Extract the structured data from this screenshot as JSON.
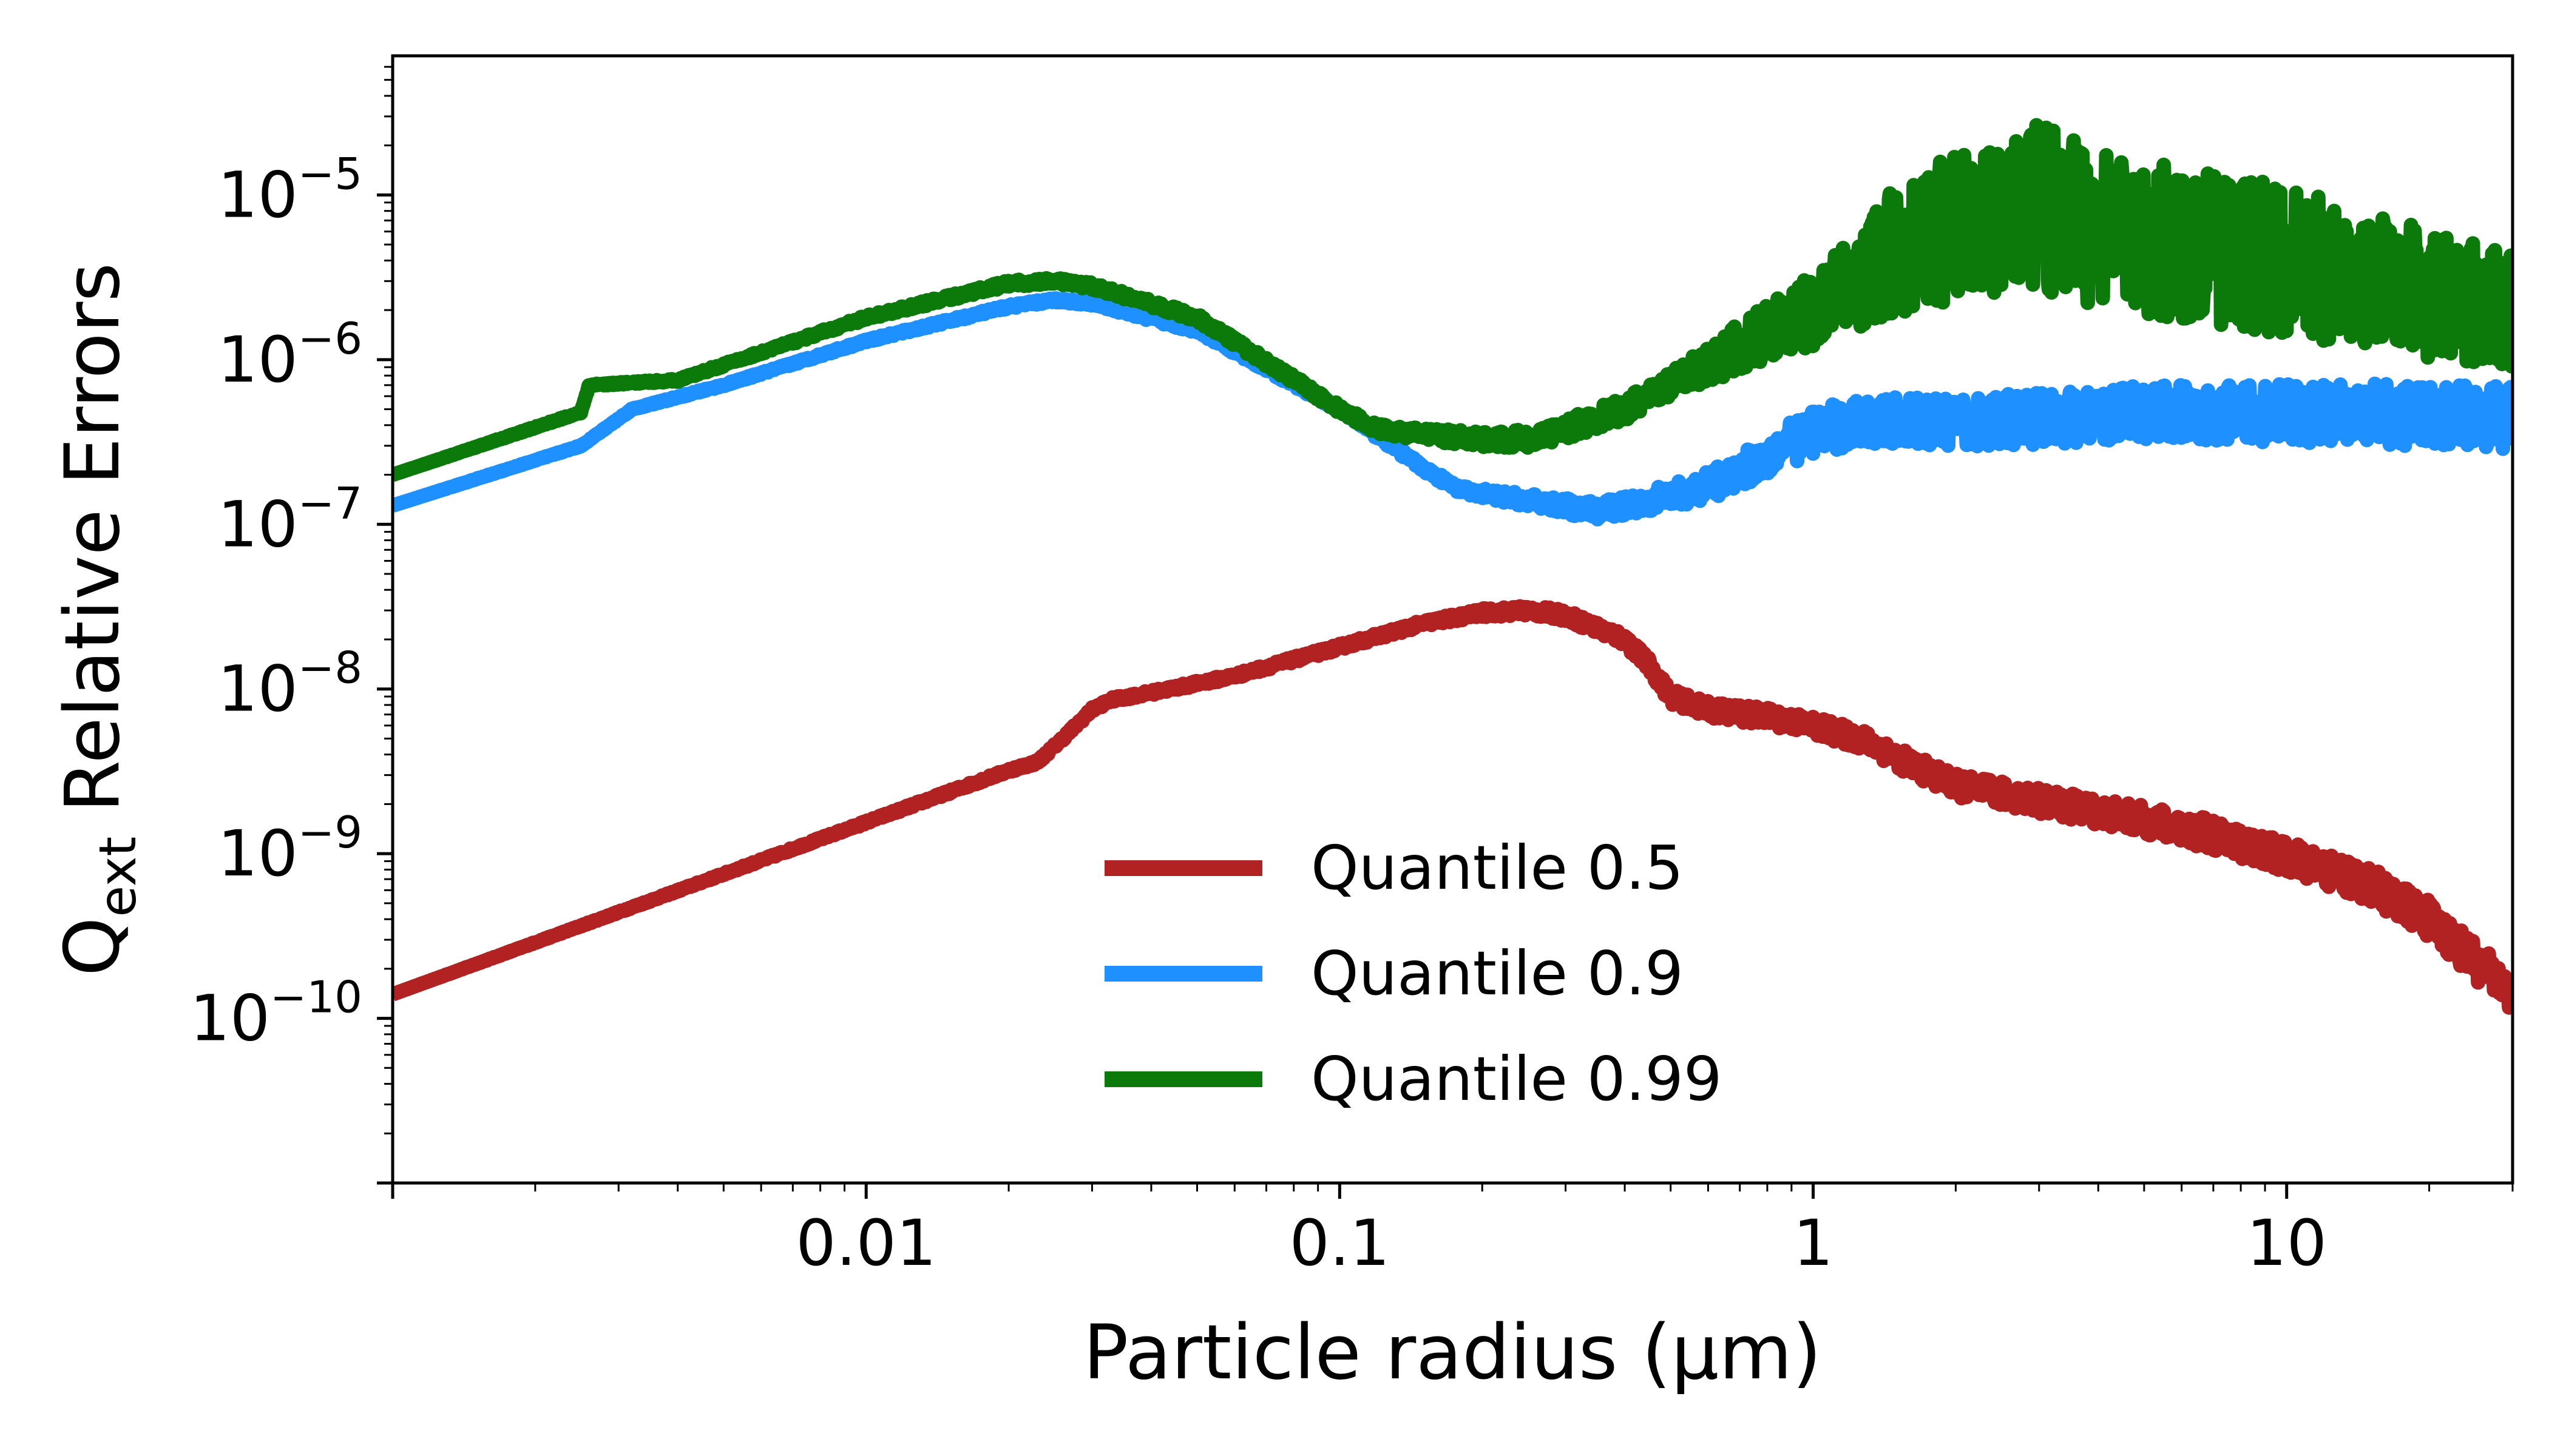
{
  "chart_data": {
    "type": "line",
    "xscale": "log",
    "yscale": "log",
    "xlim": [
      0.001,
      30
    ],
    "ylim": [
      1e-11,
      7e-05
    ],
    "xlabel": "Particle radius (μm)",
    "ylabel_main": "Q",
    "ylabel_sub": "ext",
    "ylabel_rest": " Relative Errors",
    "x_ticks": [
      {
        "value": 0.01,
        "label": "0.01"
      },
      {
        "value": 0.1,
        "label": "0.1"
      },
      {
        "value": 1,
        "label": "1"
      },
      {
        "value": 10,
        "label": "10"
      }
    ],
    "y_ticks": [
      {
        "value": 1e-10,
        "base": "10",
        "exp": "−10"
      },
      {
        "value": 1e-09,
        "base": "10",
        "exp": "−9"
      },
      {
        "value": 1e-08,
        "base": "10",
        "exp": "−8"
      },
      {
        "value": 1e-07,
        "base": "10",
        "exp": "−7"
      },
      {
        "value": 1e-06,
        "base": "10",
        "exp": "−6"
      },
      {
        "value": 1e-05,
        "base": "10",
        "exp": "−5"
      }
    ],
    "legend_position": "lower-center",
    "series": [
      {
        "name": "Quantile 0.5",
        "color": "#b22222",
        "noise": [
          [
            0.001,
            0.0
          ],
          [
            0.15,
            0.02
          ],
          [
            0.6,
            0.05
          ],
          [
            30,
            0.12
          ]
        ],
        "points": [
          [
            0.001,
            1.4e-10
          ],
          [
            0.02,
            3.2e-09
          ],
          [
            0.023,
            3.6e-09
          ],
          [
            0.026,
            5e-09
          ],
          [
            0.03,
            7.5e-09
          ],
          [
            0.033,
            8.6e-09
          ],
          [
            0.04,
            9.5e-09
          ],
          [
            0.06,
            1.2e-08
          ],
          [
            0.1,
            1.8e-08
          ],
          [
            0.15,
            2.5e-08
          ],
          [
            0.2,
            2.9e-08
          ],
          [
            0.25,
            3e-08
          ],
          [
            0.3,
            2.8e-08
          ],
          [
            0.4,
            2e-08
          ],
          [
            0.45,
            1.4e-08
          ],
          [
            0.5,
            9e-09
          ],
          [
            0.6,
            7.5e-09
          ],
          [
            0.8,
            6.8e-09
          ],
          [
            1.0,
            6e-09
          ],
          [
            1.3,
            4.8e-09
          ],
          [
            1.6,
            3.5e-09
          ],
          [
            2.0,
            2.6e-09
          ],
          [
            3.0,
            2.1e-09
          ],
          [
            4.0,
            1.8e-09
          ],
          [
            5.0,
            1.6e-09
          ],
          [
            7.0,
            1.3e-09
          ],
          [
            10,
            9.5e-10
          ],
          [
            15,
            6.5e-10
          ],
          [
            20,
            4e-10
          ],
          [
            30,
            1.4e-10
          ]
        ]
      },
      {
        "name": "Quantile 0.9",
        "color": "#1e90ff",
        "noise": [
          [
            0.001,
            0.0
          ],
          [
            0.15,
            0.02
          ],
          [
            0.5,
            0.07
          ],
          [
            1.0,
            0.14
          ],
          [
            30,
            0.2
          ]
        ],
        "points": [
          [
            0.001,
            1.3e-07
          ],
          [
            0.0025,
            3e-07
          ],
          [
            0.0032,
            5e-07
          ],
          [
            0.005,
            7e-07
          ],
          [
            0.01,
            1.3e-06
          ],
          [
            0.02,
            2.1e-06
          ],
          [
            0.025,
            2.3e-06
          ],
          [
            0.03,
            2.2e-06
          ],
          [
            0.05,
            1.5e-06
          ],
          [
            0.1,
            5e-07
          ],
          [
            0.15,
            2.2e-07
          ],
          [
            0.18,
            1.6e-07
          ],
          [
            0.25,
            1.4e-07
          ],
          [
            0.35,
            1.2e-07
          ],
          [
            0.45,
            1.4e-07
          ],
          [
            0.6,
            1.7e-07
          ],
          [
            0.8,
            2.6e-07
          ],
          [
            1.0,
            3.7e-07
          ],
          [
            1.3,
            4.2e-07
          ],
          [
            2.0,
            4.2e-07
          ],
          [
            3.0,
            4.4e-07
          ],
          [
            5.0,
            4.8e-07
          ],
          [
            10,
            4.7e-07
          ],
          [
            20,
            4.6e-07
          ],
          [
            30,
            4.5e-07
          ]
        ]
      },
      {
        "name": "Quantile 0.99",
        "color": "#0b7a0b",
        "noise": [
          [
            0.001,
            0.0
          ],
          [
            0.12,
            0.03
          ],
          [
            0.5,
            0.08
          ],
          [
            1.0,
            0.22
          ],
          [
            1.5,
            0.4
          ],
          [
            3.0,
            0.5
          ],
          [
            10,
            0.45
          ],
          [
            30,
            0.35
          ]
        ],
        "points": [
          [
            0.001,
            2e-07
          ],
          [
            0.0025,
            4.8e-07
          ],
          [
            0.0026,
            7e-07
          ],
          [
            0.004,
            7.5e-07
          ],
          [
            0.01,
            1.8e-06
          ],
          [
            0.02,
            2.9e-06
          ],
          [
            0.025,
            3e-06
          ],
          [
            0.03,
            2.8e-06
          ],
          [
            0.05,
            1.8e-06
          ],
          [
            0.1,
            5e-07
          ],
          [
            0.12,
            3.8e-07
          ],
          [
            0.15,
            3.5e-07
          ],
          [
            0.2,
            3.3e-07
          ],
          [
            0.25,
            3.3e-07
          ],
          [
            0.3,
            3.8e-07
          ],
          [
            0.4,
            5e-07
          ],
          [
            0.5,
            7e-07
          ],
          [
            0.7,
            1.2e-06
          ],
          [
            1.0,
            2e-06
          ],
          [
            1.5,
            4.5e-06
          ],
          [
            2.0,
            6.5e-06
          ],
          [
            3.0,
            8.5e-06
          ],
          [
            4.0,
            6.5e-06
          ],
          [
            6.0,
            5e-06
          ],
          [
            10,
            4e-06
          ],
          [
            20,
            2.5e-06
          ],
          [
            30,
            2e-06
          ]
        ]
      }
    ]
  }
}
